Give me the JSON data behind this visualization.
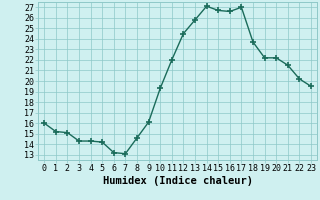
{
  "x": [
    0,
    1,
    2,
    3,
    4,
    5,
    6,
    7,
    8,
    9,
    10,
    11,
    12,
    13,
    14,
    15,
    16,
    17,
    18,
    19,
    20,
    21,
    22,
    23
  ],
  "y": [
    16,
    15.2,
    15.1,
    14.3,
    14.3,
    14.2,
    13.2,
    13.1,
    14.6,
    16.1,
    19.3,
    22.0,
    24.5,
    25.8,
    27.1,
    26.7,
    26.6,
    27.0,
    23.7,
    22.2,
    22.2,
    21.5,
    20.2,
    19.5
  ],
  "xlabel": "Humidex (Indice chaleur)",
  "xlim": [
    -0.5,
    23.5
  ],
  "ylim": [
    12.5,
    27.5
  ],
  "yticks": [
    13,
    14,
    15,
    16,
    17,
    18,
    19,
    20,
    21,
    22,
    23,
    24,
    25,
    26,
    27
  ],
  "xticks": [
    0,
    1,
    2,
    3,
    4,
    5,
    6,
    7,
    8,
    9,
    10,
    11,
    12,
    13,
    14,
    15,
    16,
    17,
    18,
    19,
    20,
    21,
    22,
    23
  ],
  "line_color": "#1a6b5a",
  "marker": "+",
  "marker_size": 4.0,
  "marker_lw": 1.2,
  "line_width": 1.0,
  "bg_color": "#cff0f0",
  "grid_color": "#8ec8c8",
  "tick_fontsize": 6.0,
  "xlabel_fontsize": 7.5
}
